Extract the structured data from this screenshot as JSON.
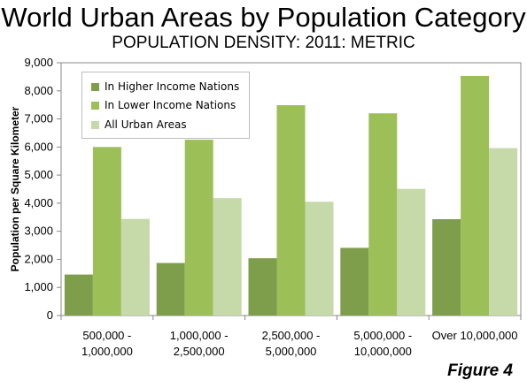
{
  "title": "World Urban Areas by Population Category",
  "subtitle": "POPULATION DENSITY: 2011: METRIC",
  "figure_label": "Figure 4",
  "colors": {
    "higher": "#7f9e4b",
    "lower": "#9cbf58",
    "all": "#c6d9a8"
  },
  "chart_data": {
    "type": "bar",
    "ylabel": "Population per Square Kilometer",
    "xlabel": "",
    "ylim": [
      0,
      9000
    ],
    "yticks": [
      0,
      1000,
      2000,
      3000,
      4000,
      5000,
      6000,
      7000,
      8000,
      9000
    ],
    "ytick_labels": [
      "0",
      "1,000",
      "2,000",
      "3,000",
      "4,000",
      "5,000",
      "6,000",
      "7,000",
      "8,000",
      "9,000"
    ],
    "categories": [
      [
        "500,000 -",
        "1,000,000"
      ],
      [
        "1,000,000 -",
        "2,500,000"
      ],
      [
        "2,500,000 -",
        "5,000,000"
      ],
      [
        "5,000,000 -",
        "10,000,000"
      ],
      [
        "Over 10,000,000"
      ]
    ],
    "series": [
      {
        "name": "In Higher Income Nations",
        "values": [
          1460,
          1870,
          2040,
          2410,
          3430
        ]
      },
      {
        "name": "In Lower Income Nations",
        "values": [
          6000,
          6260,
          7490,
          7200,
          8530
        ]
      },
      {
        "name": "All Urban Areas",
        "values": [
          3440,
          4180,
          4050,
          4510,
          5960
        ]
      }
    ],
    "legend_position": "top-left",
    "grid": false
  }
}
